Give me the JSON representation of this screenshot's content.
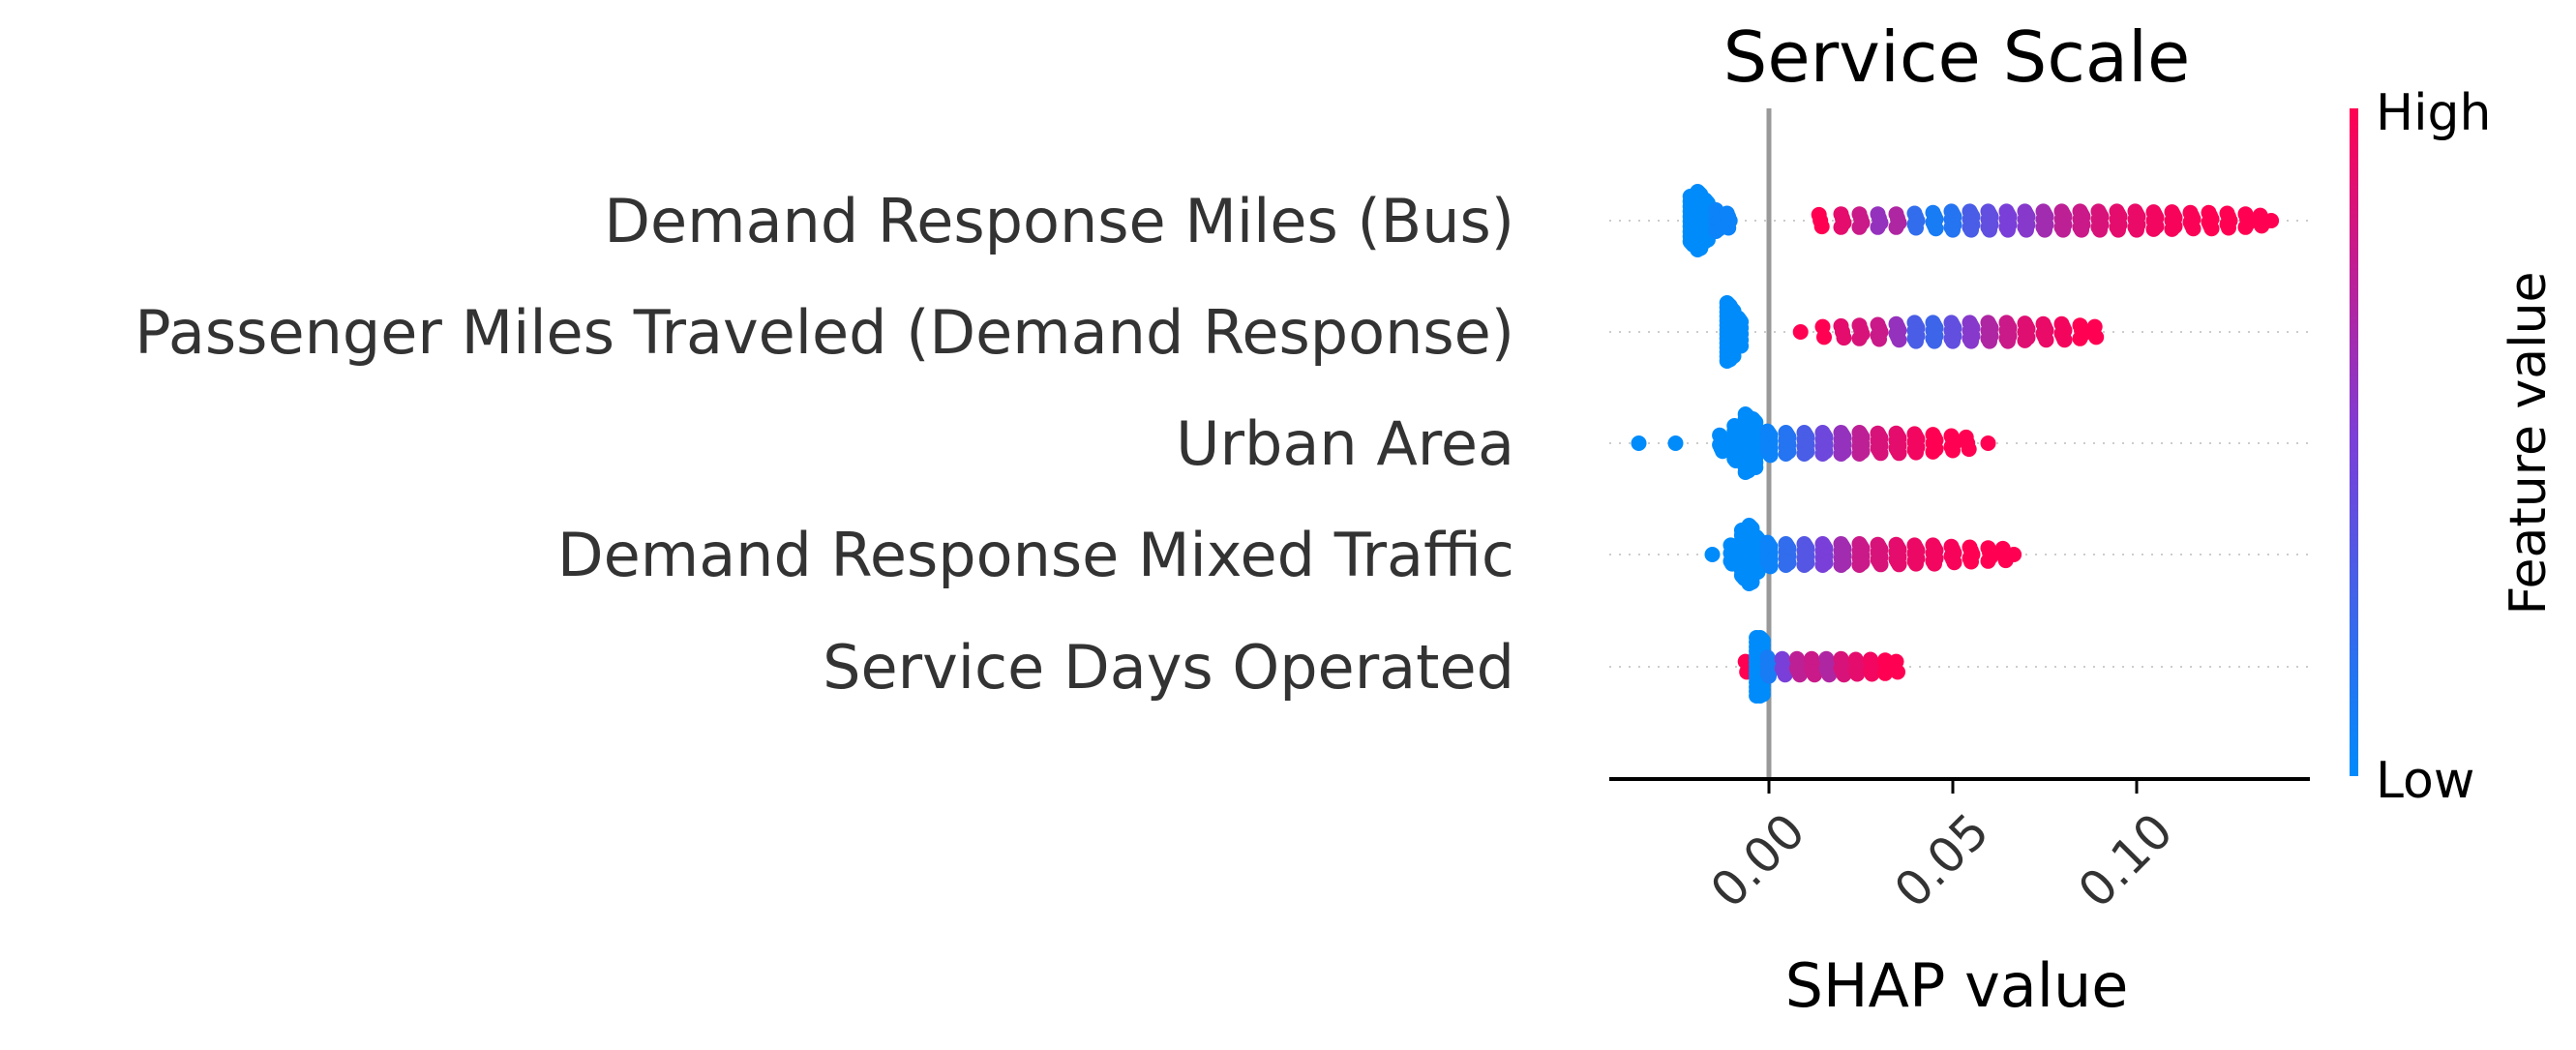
{
  "chart_data": {
    "type": "scatter",
    "subtype": "shap-beeswarm",
    "title": "Service Scale",
    "xlabel": "SHAP value",
    "xlim": [
      -0.043,
      0.147
    ],
    "xticks": [
      0.0,
      0.05,
      0.1
    ],
    "xtick_labels": [
      "0.00",
      "0.05",
      "0.10"
    ],
    "zero_line": 0.0,
    "colorbar": {
      "label": "Feature value",
      "high_label": "High",
      "low_label": "Low",
      "low_color": "#008bfb",
      "high_color": "#ff0052"
    },
    "features": [
      {
        "name": "Demand Response Miles (Bus)",
        "points": [
          {
            "x": -0.019,
            "c": 0.0,
            "n": 40
          },
          {
            "x": -0.021,
            "c": 0.0,
            "n": 30
          },
          {
            "x": -0.017,
            "c": 0.0,
            "n": 25
          },
          {
            "x": -0.014,
            "c": 0.05,
            "n": 10
          },
          {
            "x": -0.011,
            "c": 0.05,
            "n": 5
          },
          {
            "x": 0.014,
            "c": 1.0,
            "n": 3
          },
          {
            "x": 0.02,
            "c": 0.9,
            "n": 4
          },
          {
            "x": 0.025,
            "c": 0.8,
            "n": 4
          },
          {
            "x": 0.03,
            "c": 0.6,
            "n": 4
          },
          {
            "x": 0.035,
            "c": 0.7,
            "n": 4
          },
          {
            "x": 0.04,
            "c": 0.2,
            "n": 5
          },
          {
            "x": 0.045,
            "c": 0.1,
            "n": 6
          },
          {
            "x": 0.05,
            "c": 0.15,
            "n": 8
          },
          {
            "x": 0.055,
            "c": 0.3,
            "n": 8
          },
          {
            "x": 0.06,
            "c": 0.4,
            "n": 8
          },
          {
            "x": 0.065,
            "c": 0.5,
            "n": 8
          },
          {
            "x": 0.07,
            "c": 0.55,
            "n": 8
          },
          {
            "x": 0.075,
            "c": 0.65,
            "n": 8
          },
          {
            "x": 0.08,
            "c": 0.75,
            "n": 8
          },
          {
            "x": 0.085,
            "c": 0.8,
            "n": 8
          },
          {
            "x": 0.09,
            "c": 0.85,
            "n": 8
          },
          {
            "x": 0.095,
            "c": 0.9,
            "n": 8
          },
          {
            "x": 0.1,
            "c": 0.92,
            "n": 8
          },
          {
            "x": 0.105,
            "c": 0.95,
            "n": 7
          },
          {
            "x": 0.11,
            "c": 0.97,
            "n": 7
          },
          {
            "x": 0.115,
            "c": 0.98,
            "n": 6
          },
          {
            "x": 0.12,
            "c": 1.0,
            "n": 6
          },
          {
            "x": 0.125,
            "c": 1.0,
            "n": 5
          },
          {
            "x": 0.13,
            "c": 1.0,
            "n": 4
          },
          {
            "x": 0.134,
            "c": 1.0,
            "n": 2
          },
          {
            "x": 0.137,
            "c": 1.0,
            "n": 1
          }
        ]
      },
      {
        "name": "Passenger Miles Traveled (Demand Response)",
        "points": [
          {
            "x": -0.011,
            "c": 0.0,
            "n": 40
          },
          {
            "x": -0.01,
            "c": 0.0,
            "n": 30
          },
          {
            "x": -0.008,
            "c": 0.0,
            "n": 15
          },
          {
            "x": 0.009,
            "c": 1.0,
            "n": 1
          },
          {
            "x": 0.015,
            "c": 1.0,
            "n": 2
          },
          {
            "x": 0.02,
            "c": 0.9,
            "n": 3
          },
          {
            "x": 0.025,
            "c": 0.85,
            "n": 4
          },
          {
            "x": 0.03,
            "c": 0.8,
            "n": 5
          },
          {
            "x": 0.035,
            "c": 0.6,
            "n": 6
          },
          {
            "x": 0.04,
            "c": 0.3,
            "n": 8
          },
          {
            "x": 0.045,
            "c": 0.25,
            "n": 8
          },
          {
            "x": 0.05,
            "c": 0.4,
            "n": 8
          },
          {
            "x": 0.055,
            "c": 0.55,
            "n": 8
          },
          {
            "x": 0.06,
            "c": 0.7,
            "n": 8
          },
          {
            "x": 0.065,
            "c": 0.8,
            "n": 8
          },
          {
            "x": 0.07,
            "c": 0.88,
            "n": 7
          },
          {
            "x": 0.075,
            "c": 0.92,
            "n": 6
          },
          {
            "x": 0.08,
            "c": 0.96,
            "n": 6
          },
          {
            "x": 0.085,
            "c": 1.0,
            "n": 4
          },
          {
            "x": 0.089,
            "c": 1.0,
            "n": 2
          }
        ]
      },
      {
        "name": "Urban Area",
        "points": [
          {
            "x": -0.035,
            "c": 0.0,
            "n": 1
          },
          {
            "x": -0.025,
            "c": 0.0,
            "n": 1
          },
          {
            "x": -0.013,
            "c": 0.0,
            "n": 6
          },
          {
            "x": -0.009,
            "c": 0.0,
            "n": 20
          },
          {
            "x": -0.006,
            "c": 0.0,
            "n": 40
          },
          {
            "x": -0.004,
            "c": 0.0,
            "n": 30
          },
          {
            "x": 0.0,
            "c": 0.05,
            "n": 12
          },
          {
            "x": 0.005,
            "c": 0.15,
            "n": 10
          },
          {
            "x": 0.01,
            "c": 0.3,
            "n": 10
          },
          {
            "x": 0.015,
            "c": 0.45,
            "n": 10
          },
          {
            "x": 0.02,
            "c": 0.6,
            "n": 10
          },
          {
            "x": 0.025,
            "c": 0.75,
            "n": 10
          },
          {
            "x": 0.03,
            "c": 0.85,
            "n": 9
          },
          {
            "x": 0.035,
            "c": 0.9,
            "n": 9
          },
          {
            "x": 0.04,
            "c": 0.95,
            "n": 8
          },
          {
            "x": 0.045,
            "c": 1.0,
            "n": 7
          },
          {
            "x": 0.05,
            "c": 1.0,
            "n": 5
          },
          {
            "x": 0.054,
            "c": 1.0,
            "n": 3
          },
          {
            "x": 0.06,
            "c": 1.0,
            "n": 1
          }
        ]
      },
      {
        "name": "Demand Response Mixed Traffic",
        "points": [
          {
            "x": -0.015,
            "c": 0.0,
            "n": 1
          },
          {
            "x": -0.01,
            "c": 0.0,
            "n": 8
          },
          {
            "x": -0.007,
            "c": 0.0,
            "n": 30
          },
          {
            "x": -0.005,
            "c": 0.0,
            "n": 40
          },
          {
            "x": -0.003,
            "c": 0.0,
            "n": 20
          },
          {
            "x": 0.0,
            "c": 0.05,
            "n": 12
          },
          {
            "x": 0.005,
            "c": 0.2,
            "n": 10
          },
          {
            "x": 0.01,
            "c": 0.35,
            "n": 10
          },
          {
            "x": 0.015,
            "c": 0.5,
            "n": 10
          },
          {
            "x": 0.02,
            "c": 0.65,
            "n": 10
          },
          {
            "x": 0.025,
            "c": 0.8,
            "n": 10
          },
          {
            "x": 0.03,
            "c": 0.85,
            "n": 9
          },
          {
            "x": 0.035,
            "c": 0.9,
            "n": 9
          },
          {
            "x": 0.04,
            "c": 0.93,
            "n": 8
          },
          {
            "x": 0.045,
            "c": 0.95,
            "n": 8
          },
          {
            "x": 0.05,
            "c": 0.97,
            "n": 6
          },
          {
            "x": 0.055,
            "c": 1.0,
            "n": 5
          },
          {
            "x": 0.06,
            "c": 1.0,
            "n": 4
          },
          {
            "x": 0.064,
            "c": 1.0,
            "n": 3
          },
          {
            "x": 0.067,
            "c": 1.0,
            "n": 1
          }
        ]
      },
      {
        "name": "Service Days Operated",
        "points": [
          {
            "x": -0.006,
            "c": 1.0,
            "n": 2
          },
          {
            "x": -0.003,
            "c": 0.0,
            "n": 40
          },
          {
            "x": -0.002,
            "c": 0.0,
            "n": 40
          },
          {
            "x": 0.0,
            "c": 0.1,
            "n": 8
          },
          {
            "x": 0.004,
            "c": 0.5,
            "n": 6
          },
          {
            "x": 0.008,
            "c": 0.75,
            "n": 6
          },
          {
            "x": 0.012,
            "c": 0.8,
            "n": 6
          },
          {
            "x": 0.016,
            "c": 0.7,
            "n": 6
          },
          {
            "x": 0.02,
            "c": 0.85,
            "n": 6
          },
          {
            "x": 0.024,
            "c": 0.9,
            "n": 5
          },
          {
            "x": 0.028,
            "c": 0.95,
            "n": 5
          },
          {
            "x": 0.032,
            "c": 1.0,
            "n": 4
          },
          {
            "x": 0.035,
            "c": 1.0,
            "n": 2
          }
        ]
      }
    ]
  }
}
